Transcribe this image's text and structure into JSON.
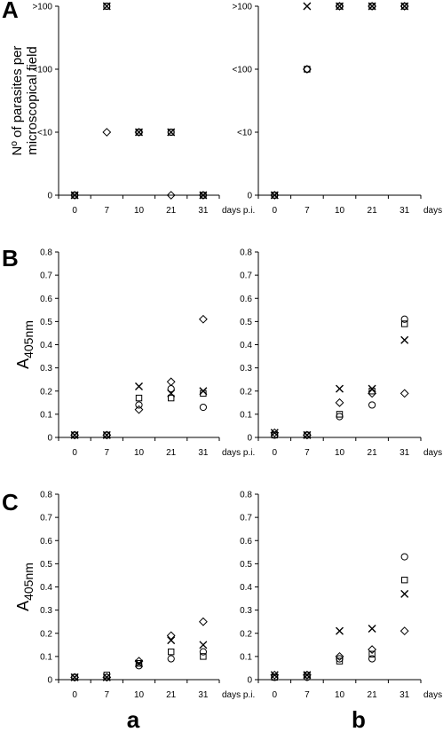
{
  "panel_labels": {
    "A": "A",
    "B": "B",
    "C": "C"
  },
  "column_labels": {
    "a": "a",
    "b": "b"
  },
  "x_unit": "days p.i.",
  "markers": {
    "diamond": "diamond",
    "square": "square",
    "cross": "x-cross",
    "circle": "circle"
  },
  "chart_data": [
    {
      "id": "A-a",
      "type": "scatter",
      "title": "",
      "xlabel": "",
      "ylabel": "Nº of parasites per microscopical field",
      "ylabel_lines": [
        "Nº of parasites per",
        "microscopical field"
      ],
      "categories": [
        "0",
        "7",
        "10",
        "21",
        "31"
      ],
      "y_categories": [
        "0",
        "<10",
        "<100",
        ">100"
      ],
      "x_unit": "days p.i.",
      "series": [
        {
          "marker": "diamond",
          "values": [
            0,
            1,
            1,
            0,
            0
          ]
        },
        {
          "marker": "square",
          "values": [
            0,
            3,
            1,
            1,
            0
          ]
        },
        {
          "marker": "cross",
          "values": [
            0,
            3,
            1,
            1,
            0
          ]
        },
        {
          "marker": "circle",
          "values": [
            0,
            3,
            1,
            1,
            0
          ]
        }
      ]
    },
    {
      "id": "A-b",
      "type": "scatter",
      "title": "",
      "xlabel": "",
      "ylabel": "",
      "categories": [
        "0",
        "7",
        "10",
        "21",
        "31"
      ],
      "y_categories": [
        "0",
        "<10",
        "<100",
        ">100"
      ],
      "x_unit": "days p.i.",
      "series": [
        {
          "marker": "diamond",
          "values": [
            0,
            2,
            3,
            3,
            3
          ]
        },
        {
          "marker": "square",
          "values": [
            0,
            2,
            3,
            3,
            3
          ]
        },
        {
          "marker": "cross",
          "values": [
            0,
            3,
            3,
            3,
            3
          ]
        },
        {
          "marker": "circle",
          "values": [
            0,
            2,
            3,
            3,
            3
          ]
        }
      ]
    },
    {
      "id": "B-a",
      "type": "scatter",
      "title": "",
      "xlabel": "",
      "ylabel": "A405nm",
      "ylabel_main": "A",
      "ylabel_sub": "405nm",
      "categories": [
        "0",
        "7",
        "10",
        "21",
        "31"
      ],
      "ylim": [
        0,
        0.8
      ],
      "y_ticks": [
        "0",
        "0.1",
        "0.2",
        "0.3",
        "0.4",
        "0.5",
        "0.6",
        "0.7",
        "0.8"
      ],
      "x_unit": "days p.i.",
      "series": [
        {
          "marker": "diamond",
          "values": [
            0.01,
            0.01,
            0.12,
            0.24,
            0.51
          ]
        },
        {
          "marker": "square",
          "values": [
            0.01,
            0.01,
            0.17,
            0.17,
            0.19
          ]
        },
        {
          "marker": "cross",
          "values": [
            0.01,
            0.01,
            0.22,
            0.19,
            0.2
          ]
        },
        {
          "marker": "circle",
          "values": [
            0.01,
            0.01,
            0.14,
            0.21,
            0.13
          ]
        }
      ]
    },
    {
      "id": "B-b",
      "type": "scatter",
      "title": "",
      "xlabel": "",
      "ylabel": "",
      "categories": [
        "0",
        "7",
        "10",
        "21",
        "31"
      ],
      "ylim": [
        0,
        0.8
      ],
      "y_ticks": [
        "0",
        "0.1",
        "0.2",
        "0.3",
        "0.4",
        "0.5",
        "0.6",
        "0.7",
        "0.8"
      ],
      "x_unit": "days p.i.",
      "series": [
        {
          "marker": "diamond",
          "values": [
            0.02,
            0.01,
            0.15,
            0.19,
            0.19
          ]
        },
        {
          "marker": "square",
          "values": [
            0.01,
            0.01,
            0.1,
            0.2,
            0.49
          ]
        },
        {
          "marker": "cross",
          "values": [
            0.02,
            0.01,
            0.21,
            0.21,
            0.42
          ]
        },
        {
          "marker": "circle",
          "values": [
            0.01,
            0.01,
            0.09,
            0.14,
            0.51
          ]
        }
      ]
    },
    {
      "id": "C-a",
      "type": "scatter",
      "title": "",
      "xlabel": "",
      "ylabel": "A405nm",
      "ylabel_main": "A",
      "ylabel_sub": "405nm",
      "categories": [
        "0",
        "7",
        "10",
        "21",
        "31"
      ],
      "ylim": [
        0,
        0.8
      ],
      "y_ticks": [
        "0",
        "0.1",
        "0.2",
        "0.3",
        "0.4",
        "0.5",
        "0.6",
        "0.7",
        "0.8"
      ],
      "x_unit": "days p.i.",
      "series": [
        {
          "marker": "diamond",
          "values": [
            0.01,
            0.01,
            0.08,
            0.19,
            0.25
          ]
        },
        {
          "marker": "square",
          "values": [
            0.01,
            0.02,
            0.07,
            0.12,
            0.1
          ]
        },
        {
          "marker": "cross",
          "values": [
            0.01,
            0.01,
            0.07,
            0.17,
            0.15
          ]
        },
        {
          "marker": "circle",
          "values": [
            0.01,
            0.01,
            0.06,
            0.09,
            0.12
          ]
        }
      ]
    },
    {
      "id": "C-b",
      "type": "scatter",
      "title": "",
      "xlabel": "",
      "ylabel": "",
      "categories": [
        "0",
        "7",
        "10",
        "21",
        "31"
      ],
      "ylim": [
        0,
        0.8
      ],
      "y_ticks": [
        "0",
        "0.1",
        "0.2",
        "0.3",
        "0.4",
        "0.5",
        "0.6",
        "0.7",
        "0.8"
      ],
      "x_unit": "days p.i.",
      "series": [
        {
          "marker": "diamond",
          "values": [
            0.02,
            0.02,
            0.1,
            0.13,
            0.21
          ]
        },
        {
          "marker": "square",
          "values": [
            0.01,
            0.02,
            0.08,
            0.11,
            0.43
          ]
        },
        {
          "marker": "cross",
          "values": [
            0.02,
            0.02,
            0.21,
            0.22,
            0.37
          ]
        },
        {
          "marker": "circle",
          "values": [
            0.01,
            0.01,
            0.09,
            0.09,
            0.53
          ]
        }
      ]
    }
  ]
}
